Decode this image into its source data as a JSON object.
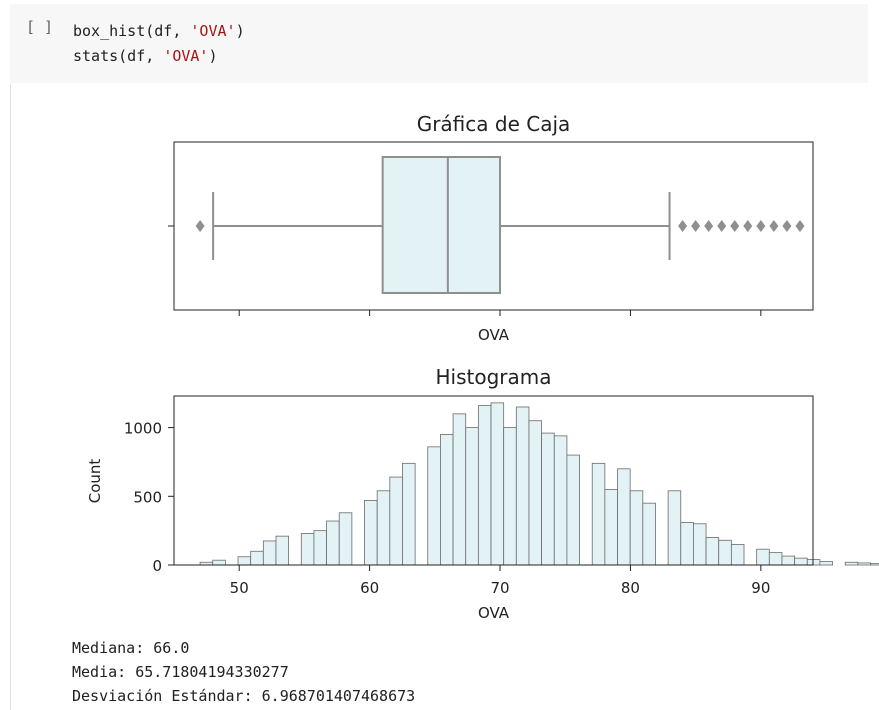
{
  "cell": {
    "run_button": "[ ]",
    "code_line1_pre": "box_hist(df, ",
    "code_line1_str": "'OVA'",
    "code_line1_post": ")",
    "code_line2_pre": "stats(df, ",
    "code_line2_str": "'OVA'",
    "code_line2_post": ")"
  },
  "output": {
    "median": "Mediana: 66.0",
    "mean": "Media: 65.71804194330277",
    "std": "Desviación Estándar: 6.968701407468673"
  },
  "colors": {
    "fill": "#e3f2f4",
    "edge": "#6b6b6b",
    "box_line": "#8f8f8f",
    "flier": "#8f8f8f"
  },
  "chart_data": [
    {
      "type": "box",
      "title": "Gráfica de Caja",
      "xlabel": "OVA",
      "whisker_low": 48,
      "q1": 61,
      "median": 66,
      "q3": 70,
      "whisker_high": 83,
      "outliers": [
        47,
        84,
        85,
        86,
        87,
        88,
        89,
        90,
        91,
        92,
        93
      ],
      "xlim": [
        45,
        94
      ]
    },
    {
      "type": "bar",
      "title": "Histograma",
      "xlabel": "OVA",
      "ylabel": "Count",
      "xlim": [
        45,
        94
      ],
      "ylim": [
        0,
        1230
      ],
      "xticks": [
        50,
        60,
        70,
        80,
        90
      ],
      "yticks": [
        0,
        500,
        1000
      ],
      "bin_width": 0.97,
      "bin_start": 47,
      "values": [
        20,
        35,
        0,
        60,
        100,
        175,
        210,
        0,
        230,
        250,
        320,
        380,
        0,
        470,
        540,
        640,
        740,
        0,
        860,
        950,
        1100,
        1000,
        1160,
        1180,
        1000,
        1150,
        1050,
        960,
        940,
        800,
        0,
        740,
        550,
        700,
        540,
        450,
        0,
        540,
        310,
        300,
        200,
        180,
        150,
        0,
        115,
        90,
        65,
        50,
        40,
        25,
        0,
        20,
        15,
        10,
        15,
        5,
        0,
        10,
        5,
        5
      ]
    }
  ]
}
